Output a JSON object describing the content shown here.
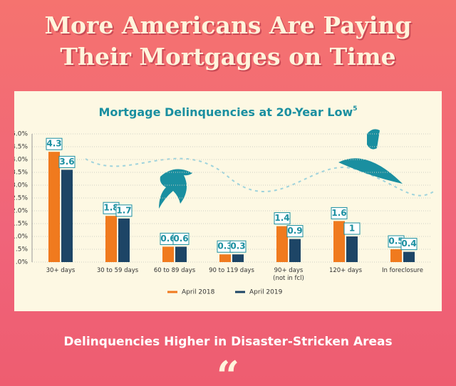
{
  "headline": "More Americans Are Paying\nTheir Mortgages on Time",
  "chart_data": {
    "type": "bar",
    "title": "Mortgage Delinquencies at 20-Year Low",
    "title_footnote": "5",
    "categories": [
      "30+ days",
      "30 to 59 days",
      "60 to 89 days",
      "90 to 119 days",
      "90+ days\n(not in fcl)",
      "120+ days",
      "In foreclosure"
    ],
    "series": [
      {
        "name": "April 2018",
        "color": "#f07a1e",
        "values": [
          4.3,
          1.8,
          0.6,
          0.3,
          1.4,
          1.6,
          0.5
        ]
      },
      {
        "name": "April 2019",
        "color": "#1d4566",
        "values": [
          3.6,
          1.7,
          0.6,
          0.3,
          0.9,
          1.0,
          0.4
        ]
      }
    ],
    "ylim": [
      0,
      5
    ],
    "yticks": [
      {
        "value": 0,
        "label": ".0%"
      },
      {
        "value": 0.5,
        "label": ".5%"
      },
      {
        "value": 1,
        "label": "1.0%"
      },
      {
        "value": 1.5,
        "label": "1.5%"
      },
      {
        "value": 2,
        "label": "2.0%"
      },
      {
        "value": 2.5,
        "label": "2.5%"
      },
      {
        "value": 3,
        "label": "3.0%"
      },
      {
        "value": 3.5,
        "label": "3.5%"
      },
      {
        "value": 4,
        "label": "4.0%"
      },
      {
        "value": 4.5,
        "label": "4.5%"
      },
      {
        "value": 5,
        "label": "5.0%"
      }
    ],
    "grid": true,
    "legend": "bottom"
  },
  "subheading": "Delinquencies Higher in Disaster-Stricken Areas",
  "quote_mark": "“"
}
